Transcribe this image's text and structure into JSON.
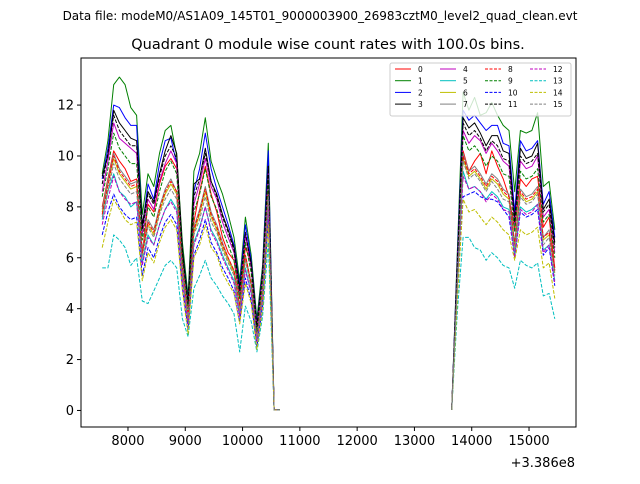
{
  "figure": {
    "suptitle": "Data file: modeM0/AS1A09_145T01_9000003900_26983cztM0_level2_quad_clean.evt",
    "title": "Quadrant 0 module wise count rates with 100.0s bins.",
    "offset_label": "+3.386e8"
  },
  "chart_data": {
    "type": "line",
    "title": "Quadrant 0 module wise count rates with 100.0s bins.",
    "xlabel": "",
    "ylabel": "",
    "x_offset": 338600000,
    "xlim": [
      7180,
      15820
    ],
    "ylim": [
      -0.65,
      13.85
    ],
    "xticks": [
      8000,
      9000,
      10000,
      11000,
      12000,
      13000,
      14000,
      15000
    ],
    "yticks": [
      0,
      2,
      4,
      6,
      8,
      10,
      12
    ],
    "legend_position": "top-right",
    "x_segments": [
      [
        7550,
        7650,
        7750,
        7850,
        7950,
        8050,
        8150,
        8250,
        8350,
        8450,
        8550,
        8650,
        8750,
        8850,
        8950,
        9050,
        9150,
        9250,
        9350,
        9450,
        9550,
        9650,
        9750,
        9850,
        9950,
        10050,
        10150,
        10250,
        10350,
        10450,
        10550,
        10650
      ],
      [
        13650,
        13750,
        13850,
        13950,
        14050,
        14150,
        14250,
        14350,
        14450,
        14550,
        14650,
        14750,
        14850,
        14950,
        15050,
        15150,
        15250,
        15350,
        15450
      ]
    ],
    "series": [
      {
        "name": "0",
        "color": "#ff0000",
        "dash": "solid",
        "segments": [
          [
            8.0,
            9.1,
            10.2,
            9.8,
            9.5,
            9.0,
            9.1,
            6.2,
            8.1,
            7.8,
            8.9,
            9.6,
            9.9,
            9.5,
            6.1,
            4.2,
            7.4,
            8.6,
            9.6,
            8.5,
            7.8,
            6.8,
            6.2,
            5.9,
            4.4,
            6.4,
            5.8,
            3.1,
            5.6,
            9.2,
            0.02,
            0.02
          ],
          [
            0.02,
            5.6,
            10.2,
            9.4,
            9.8,
            10.1,
            9.3,
            10.2,
            9.6,
            9.1,
            8.4,
            7.1,
            9.1,
            8.8,
            9.1,
            9.2,
            7.2,
            7.6,
            5.6
          ]
        ]
      },
      {
        "name": "1",
        "color": "#008000",
        "dash": "solid",
        "segments": [
          [
            9.3,
            10.6,
            12.8,
            13.1,
            12.8,
            11.9,
            11.6,
            7.7,
            9.3,
            8.8,
            10.1,
            11.0,
            11.2,
            10.0,
            6.6,
            4.5,
            9.4,
            10.1,
            11.5,
            9.8,
            9.1,
            8.5,
            7.7,
            6.8,
            5.1,
            7.6,
            6.1,
            3.6,
            5.7,
            10.5,
            0.02,
            0.02
          ],
          [
            0.02,
            6.3,
            12.5,
            11.8,
            12.3,
            11.6,
            11.7,
            12.1,
            11.6,
            11.2,
            11.0,
            8.6,
            11.0,
            10.9,
            11.0,
            11.7,
            8.8,
            9.0,
            7.1
          ]
        ]
      },
      {
        "name": "2",
        "color": "#0000ff",
        "dash": "solid",
        "segments": [
          [
            9.1,
            10.3,
            12.0,
            11.9,
            11.5,
            11.2,
            11.2,
            7.2,
            8.9,
            8.3,
            9.7,
            10.6,
            10.7,
            9.7,
            6.3,
            4.3,
            8.6,
            9.5,
            10.9,
            9.5,
            8.7,
            8.0,
            7.3,
            6.5,
            4.9,
            7.3,
            5.9,
            3.4,
            5.5,
            10.2,
            0.02,
            0.02
          ],
          [
            0.02,
            6.1,
            11.8,
            11.4,
            11.6,
            11.3,
            11.0,
            11.2,
            11.2,
            10.5,
            10.4,
            7.8,
            10.6,
            10.2,
            10.3,
            10.6,
            8.1,
            8.6,
            6.8
          ]
        ]
      },
      {
        "name": "3",
        "color": "#000000",
        "dash": "solid",
        "segments": [
          [
            9.2,
            10.0,
            11.8,
            11.3,
            11.0,
            10.7,
            10.6,
            7.3,
            8.6,
            8.2,
            9.3,
            10.2,
            10.8,
            10.1,
            6.3,
            4.2,
            8.9,
            9.1,
            10.3,
            9.0,
            8.5,
            7.7,
            7.1,
            6.4,
            4.8,
            6.9,
            5.8,
            3.3,
            5.4,
            9.6,
            0.02,
            0.02
          ],
          [
            0.02,
            5.8,
            11.5,
            11.1,
            11.3,
            10.9,
            10.4,
            10.8,
            10.8,
            10.2,
            10.1,
            7.5,
            10.3,
            9.9,
            10.0,
            10.5,
            7.9,
            8.3,
            6.6
          ]
        ]
      },
      {
        "name": "4",
        "color": "#bf00bf",
        "dash": "solid",
        "segments": [
          [
            8.6,
            9.8,
            11.3,
            10.7,
            10.5,
            10.3,
            10.1,
            6.9,
            8.3,
            7.9,
            9.0,
            9.7,
            10.2,
            9.7,
            6.0,
            4.1,
            8.1,
            8.9,
            9.9,
            8.8,
            8.3,
            7.4,
            6.8,
            6.2,
            4.6,
            6.9,
            5.6,
            3.2,
            5.3,
            9.3,
            0.02,
            0.02
          ],
          [
            0.02,
            5.7,
            11.0,
            10.5,
            10.8,
            10.6,
            10.1,
            10.5,
            10.2,
            9.8,
            9.6,
            7.3,
            9.8,
            9.5,
            9.6,
            10.0,
            7.6,
            7.9,
            6.2
          ]
        ]
      },
      {
        "name": "5",
        "color": "#00bfbf",
        "dash": "solid",
        "segments": [
          [
            7.5,
            8.6,
            9.3,
            8.6,
            8.4,
            8.0,
            8.2,
            5.8,
            6.9,
            6.5,
            7.3,
            7.9,
            8.3,
            7.9,
            5.2,
            3.4,
            6.6,
            7.2,
            8.0,
            7.1,
            6.7,
            6.1,
            5.6,
            5.1,
            3.8,
            5.6,
            4.6,
            2.7,
            4.4,
            8.1,
            0.02,
            0.02
          ],
          [
            0.02,
            4.9,
            9.4,
            8.7,
            8.8,
            8.6,
            8.3,
            8.6,
            8.4,
            8.0,
            7.9,
            6.1,
            8.0,
            7.8,
            7.9,
            8.1,
            6.3,
            6.5,
            5.1
          ]
        ]
      },
      {
        "name": "6",
        "color": "#bfbf00",
        "dash": "solid",
        "segments": [
          [
            7.8,
            8.9,
            9.9,
            9.3,
            9.0,
            8.7,
            8.8,
            6.1,
            7.3,
            6.9,
            7.8,
            8.5,
            8.9,
            8.5,
            5.5,
            3.6,
            7.0,
            7.7,
            8.6,
            7.6,
            7.1,
            6.4,
            5.9,
            5.4,
            4.0,
            6.0,
            4.9,
            2.9,
            4.7,
            8.5,
            0.02,
            0.02
          ],
          [
            0.02,
            5.2,
            9.9,
            9.2,
            9.4,
            9.1,
            8.7,
            9.1,
            8.9,
            8.5,
            8.3,
            6.4,
            8.5,
            8.2,
            8.3,
            8.6,
            6.7,
            6.9,
            5.4
          ]
        ]
      },
      {
        "name": "7",
        "color": "#808080",
        "dash": "solid",
        "segments": [
          [
            7.9,
            9.0,
            10.1,
            9.5,
            9.2,
            8.9,
            9.0,
            6.3,
            7.5,
            7.1,
            8.0,
            8.7,
            9.1,
            8.6,
            5.6,
            3.7,
            7.2,
            7.9,
            8.8,
            7.8,
            7.3,
            6.6,
            6.0,
            5.5,
            4.1,
            6.1,
            5.0,
            2.9,
            4.8,
            8.7,
            0.02,
            0.02
          ],
          [
            0.02,
            5.3,
            10.1,
            9.4,
            9.6,
            9.3,
            8.9,
            9.3,
            9.1,
            8.7,
            8.5,
            6.6,
            8.7,
            8.4,
            8.5,
            8.8,
            6.8,
            7.1,
            5.5
          ]
        ]
      },
      {
        "name": "8",
        "color": "#ff0000",
        "dash": "dashed",
        "segments": [
          [
            7.7,
            8.8,
            10.0,
            9.4,
            9.1,
            8.8,
            8.9,
            6.2,
            7.4,
            7.0,
            7.9,
            8.6,
            9.0,
            8.6,
            5.6,
            3.7,
            7.1,
            7.8,
            8.7,
            7.7,
            7.2,
            6.5,
            6.0,
            5.5,
            4.1,
            6.1,
            5.0,
            2.9,
            4.8,
            8.6,
            0.02,
            0.02
          ],
          [
            0.02,
            5.3,
            10.0,
            9.3,
            9.5,
            9.2,
            8.8,
            9.2,
            9.0,
            8.6,
            8.4,
            6.5,
            8.6,
            8.3,
            8.4,
            8.7,
            6.8,
            7.0,
            5.5
          ]
        ]
      },
      {
        "name": "9",
        "color": "#008000",
        "dash": "dashed",
        "segments": [
          [
            8.4,
            9.5,
            10.9,
            10.3,
            10.0,
            9.7,
            9.7,
            6.7,
            8.0,
            7.6,
            8.6,
            9.4,
            9.8,
            9.3,
            6.0,
            4.0,
            7.8,
            8.5,
            9.5,
            8.4,
            7.9,
            7.1,
            6.5,
            5.9,
            4.4,
            6.6,
            5.4,
            3.1,
            5.1,
            9.2,
            0.02,
            0.02
          ],
          [
            0.02,
            5.6,
            10.8,
            10.2,
            10.4,
            10.1,
            9.6,
            10.0,
            9.8,
            9.3,
            9.2,
            7.0,
            9.4,
            9.1,
            9.2,
            9.5,
            7.4,
            7.7,
            6.0
          ]
        ]
      },
      {
        "name": "10",
        "color": "#0000ff",
        "dash": "dashed",
        "segments": [
          [
            6.9,
            7.8,
            8.5,
            8.0,
            7.7,
            7.5,
            7.6,
            5.3,
            6.4,
            6.0,
            6.8,
            7.4,
            7.7,
            7.3,
            4.8,
            3.2,
            6.1,
            6.7,
            7.5,
            6.6,
            6.2,
            5.6,
            5.2,
            4.7,
            3.5,
            5.2,
            4.3,
            2.5,
            4.1,
            7.5,
            0.02,
            0.02
          ],
          [
            0.02,
            4.6,
            8.4,
            8.5,
            8.6,
            8.4,
            8.3,
            8.3,
            8.2,
            7.9,
            7.6,
            6.0,
            7.8,
            7.6,
            7.7,
            7.9,
            6.1,
            6.4,
            4.9
          ]
        ]
      },
      {
        "name": "11",
        "color": "#000000",
        "dash": "dashed",
        "segments": [
          [
            8.9,
            10.1,
            11.6,
            11.0,
            10.7,
            10.4,
            10.4,
            7.1,
            8.5,
            8.1,
            9.2,
            10.0,
            10.4,
            9.9,
            6.2,
            4.2,
            8.4,
            9.1,
            10.1,
            9.0,
            8.4,
            7.6,
            7.0,
            6.3,
            4.7,
            7.0,
            5.7,
            3.3,
            5.4,
            9.6,
            0.02,
            0.02
          ],
          [
            0.02,
            5.9,
            11.3,
            10.8,
            11.0,
            10.7,
            10.2,
            10.6,
            10.4,
            9.9,
            9.8,
            7.4,
            10.0,
            9.7,
            9.8,
            10.1,
            7.8,
            8.1,
            6.4
          ]
        ]
      },
      {
        "name": "12",
        "color": "#bf00bf",
        "dash": "dashed",
        "segments": [
          [
            7.3,
            8.3,
            9.2,
            8.6,
            8.3,
            8.1,
            8.2,
            5.7,
            6.8,
            6.5,
            7.3,
            7.9,
            8.2,
            7.8,
            5.1,
            3.4,
            6.5,
            7.1,
            8.0,
            7.0,
            6.6,
            6.0,
            5.5,
            5.0,
            3.7,
            5.5,
            4.6,
            2.7,
            4.4,
            8.0,
            0.02,
            0.02
          ],
          [
            0.02,
            4.9,
            9.2,
            8.7,
            8.8,
            8.6,
            8.2,
            8.5,
            8.3,
            7.9,
            7.8,
            6.0,
            7.9,
            7.7,
            7.8,
            8.1,
            6.2,
            6.5,
            5.0
          ]
        ]
      },
      {
        "name": "13",
        "color": "#00bfbf",
        "dash": "dashed",
        "segments": [
          [
            5.6,
            5.6,
            6.9,
            6.7,
            6.4,
            5.7,
            6.0,
            4.3,
            4.2,
            4.7,
            5.2,
            5.7,
            5.9,
            5.6,
            3.6,
            2.9,
            4.8,
            5.3,
            5.9,
            5.2,
            4.9,
            4.5,
            4.2,
            3.8,
            2.3,
            4.1,
            3.5,
            2.3,
            3.7,
            6.6,
            0.02,
            0.02
          ],
          [
            0.02,
            3.9,
            6.8,
            6.8,
            6.4,
            6.3,
            5.9,
            6.2,
            6.0,
            5.7,
            5.6,
            4.8,
            5.9,
            5.7,
            5.6,
            5.8,
            4.5,
            4.6,
            3.6
          ]
        ]
      },
      {
        "name": "14",
        "color": "#bfbf00",
        "dash": "dashed",
        "segments": [
          [
            6.4,
            7.4,
            8.3,
            7.9,
            7.5,
            7.3,
            7.4,
            5.1,
            6.2,
            5.8,
            6.6,
            7.2,
            7.5,
            7.1,
            4.7,
            3.0,
            6.0,
            6.5,
            7.3,
            6.4,
            6.1,
            5.4,
            5.0,
            4.6,
            3.4,
            5.0,
            4.2,
            2.4,
            4.0,
            7.3,
            0.02,
            0.02
          ],
          [
            0.02,
            4.4,
            8.3,
            7.8,
            7.9,
            7.6,
            7.3,
            7.6,
            7.4,
            7.1,
            6.9,
            5.9,
            7.1,
            6.9,
            7.0,
            7.2,
            5.6,
            5.8,
            4.4
          ]
        ]
      },
      {
        "name": "15",
        "color": "#808080",
        "dash": "dashed",
        "segments": [
          [
            7.6,
            8.6,
            9.7,
            9.1,
            8.8,
            8.5,
            8.6,
            6.0,
            7.2,
            6.8,
            7.7,
            8.3,
            8.7,
            8.3,
            5.4,
            3.6,
            6.9,
            7.5,
            8.4,
            7.4,
            7.0,
            6.3,
            5.8,
            5.3,
            3.9,
            5.9,
            4.8,
            2.8,
            4.6,
            8.4,
            0.02,
            0.02
          ],
          [
            0.02,
            5.1,
            9.8,
            9.1,
            9.3,
            9.0,
            8.6,
            9.0,
            8.7,
            8.3,
            8.2,
            6.3,
            8.4,
            8.1,
            8.2,
            8.5,
            6.5,
            6.8,
            5.3
          ]
        ]
      }
    ]
  }
}
